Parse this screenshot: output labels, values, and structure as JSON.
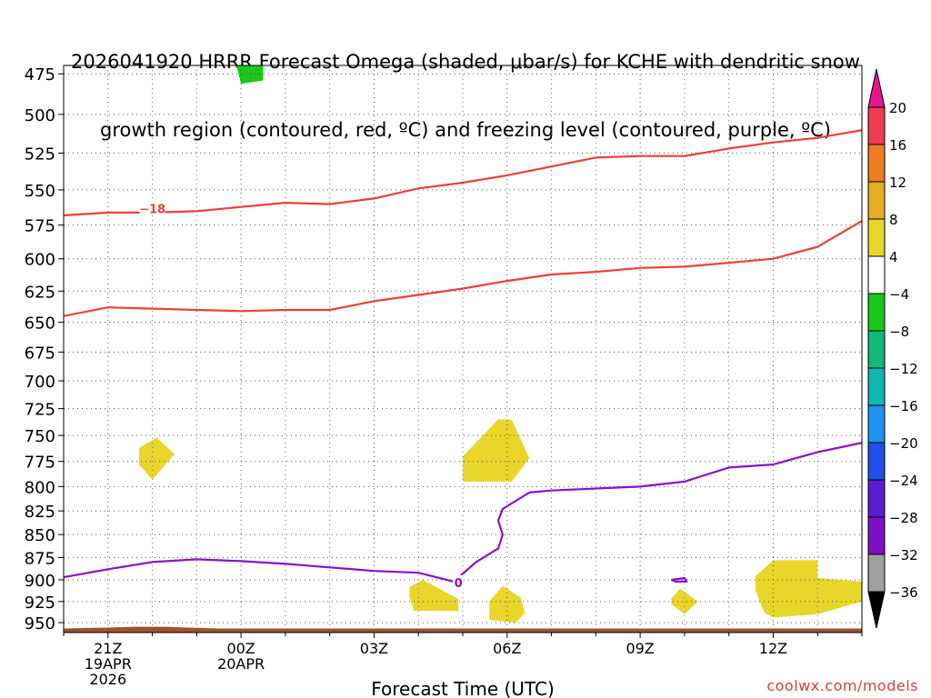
{
  "title_line1": "2026041920 HRRR Forecast Omega (shaded, μbar/s) for KCHE with dendritic snow",
  "title_line2": "growth region (contoured, red, ºC) and freezing level (contoured, purple, ºC)",
  "credit": "coolwx.com/models",
  "chart_data": {
    "type": "heatmap",
    "xlabel": "Forecast Time (UTC)",
    "x_range": [
      -1,
      17
    ],
    "y_range": [
      470,
      962
    ],
    "y_log": true,
    "y_ticks": [
      475,
      500,
      525,
      550,
      575,
      600,
      625,
      650,
      675,
      700,
      725,
      750,
      775,
      800,
      825,
      850,
      875,
      900,
      925,
      950
    ],
    "x_ticks": [
      {
        "t": 0,
        "lines": [
          "21Z",
          "19APR",
          "2026"
        ]
      },
      {
        "t": 3,
        "lines": [
          "00Z",
          "20APR"
        ]
      },
      {
        "t": 6,
        "lines": [
          "03Z"
        ]
      },
      {
        "t": 9,
        "lines": [
          "06Z"
        ]
      },
      {
        "t": 12,
        "lines": [
          "09Z"
        ]
      },
      {
        "t": 15,
        "lines": [
          "12Z"
        ]
      }
    ],
    "x_minor_ticks": [
      -1,
      1,
      2,
      4,
      5,
      7,
      8,
      10,
      11,
      13,
      14,
      16,
      17
    ],
    "colorbar": {
      "labels": [
        "20",
        "16",
        "12",
        "8",
        "4",
        "−4",
        "−8",
        "−12",
        "−16",
        "−20",
        "−24",
        "−28",
        "−32",
        "−36"
      ],
      "colors": [
        "#f03c50",
        "#ed7d22",
        "#e3ad24",
        "#e8d62a",
        "#ffffff",
        "#19c819",
        "#14b87a",
        "#10b6b4",
        "#1e90f0",
        "#1f50e8",
        "#5a1ed0",
        "#7d10c4",
        "#a0a0a0"
      ],
      "top_color": "#e6168c",
      "bottom_color": "#000000"
    },
    "dgz_contours": [
      {
        "value": -18,
        "label": "−18",
        "label_at": [
          1.0,
          563
        ],
        "points": [
          [
            -1,
            568
          ],
          [
            0,
            566
          ],
          [
            1,
            566
          ],
          [
            2,
            565
          ],
          [
            3,
            562
          ],
          [
            4,
            559
          ],
          [
            5,
            560
          ],
          [
            6,
            556
          ],
          [
            7,
            549
          ],
          [
            8,
            545
          ],
          [
            9,
            540
          ],
          [
            10,
            534
          ],
          [
            11,
            528
          ],
          [
            12,
            527
          ],
          [
            13,
            527
          ],
          [
            14,
            522
          ],
          [
            15,
            518
          ],
          [
            16,
            515
          ],
          [
            17,
            510
          ]
        ]
      },
      {
        "value": -12,
        "label": "",
        "label_at": null,
        "points": [
          [
            -1,
            645
          ],
          [
            0,
            638
          ],
          [
            1,
            639
          ],
          [
            2,
            640
          ],
          [
            3,
            641
          ],
          [
            4,
            640
          ],
          [
            5,
            640
          ],
          [
            6,
            633
          ],
          [
            7,
            628
          ],
          [
            8,
            623
          ],
          [
            9,
            617
          ],
          [
            10,
            612
          ],
          [
            11,
            610
          ],
          [
            12,
            607
          ],
          [
            13,
            606
          ],
          [
            14,
            603
          ],
          [
            15,
            600
          ],
          [
            16,
            591
          ],
          [
            17,
            572
          ]
        ]
      }
    ],
    "freezing_level": [
      {
        "value": 0,
        "label": "0",
        "label_at": [
          7.9,
          903
        ],
        "points": [
          [
            -1,
            897
          ],
          [
            0,
            888
          ],
          [
            1,
            880
          ],
          [
            2,
            877
          ],
          [
            3,
            879
          ],
          [
            4,
            882
          ],
          [
            5,
            886
          ],
          [
            6,
            890
          ],
          [
            7,
            892
          ],
          [
            7.8,
            902
          ],
          [
            8.3,
            880
          ],
          [
            8.8,
            865
          ],
          [
            8.9,
            850
          ],
          [
            8.8,
            835
          ],
          [
            8.9,
            823
          ],
          [
            9.5,
            806
          ],
          [
            10,
            804
          ],
          [
            11,
            802
          ],
          [
            12,
            800
          ],
          [
            13,
            795
          ],
          [
            14,
            781
          ],
          [
            15,
            778
          ],
          [
            16,
            766
          ],
          [
            17,
            757
          ]
        ]
      },
      {
        "value": 0,
        "label": "",
        "label_at": null,
        "points": [
          [
            12.7,
            900
          ],
          [
            13,
            898
          ],
          [
            13.05,
            902
          ],
          [
            12.8,
            902
          ],
          [
            12.7,
            900
          ]
        ]
      }
    ],
    "omega_regions": [
      {
        "level": "-8 to -4",
        "color": "#19c819",
        "points": [
          [
            2.9,
            470
          ],
          [
            3.5,
            470
          ],
          [
            3.5,
            479
          ],
          [
            3.0,
            481
          ]
        ]
      },
      {
        "level": "4 to 8",
        "color": "#e8d62a",
        "points": [
          [
            0.7,
            762
          ],
          [
            1.1,
            752
          ],
          [
            1.5,
            768
          ],
          [
            1.0,
            793
          ],
          [
            0.7,
            778
          ]
        ]
      },
      {
        "level": "4 to 8",
        "color": "#e8d62a",
        "points": [
          [
            8,
            770
          ],
          [
            8.8,
            735
          ],
          [
            9.1,
            735
          ],
          [
            9.5,
            772
          ],
          [
            9.1,
            795
          ],
          [
            8,
            795
          ]
        ]
      },
      {
        "level": "4 to 8",
        "color": "#e8d62a",
        "points": [
          [
            6.8,
            908
          ],
          [
            7.1,
            900
          ],
          [
            7.9,
            922
          ],
          [
            7.9,
            936
          ],
          [
            6.9,
            936
          ],
          [
            6.8,
            920
          ]
        ]
      },
      {
        "level": "4 to 8",
        "color": "#e8d62a",
        "points": [
          [
            8.6,
            925
          ],
          [
            8.9,
            907
          ],
          [
            9.3,
            920
          ],
          [
            9.4,
            938
          ],
          [
            9.2,
            950
          ],
          [
            8.6,
            947
          ]
        ]
      },
      {
        "level": "4 to 8",
        "color": "#e8d62a",
        "points": [
          [
            12.7,
            922
          ],
          [
            12.9,
            910
          ],
          [
            13.3,
            925
          ],
          [
            13.0,
            940
          ],
          [
            12.7,
            928
          ]
        ]
      },
      {
        "level": "4 to 8",
        "color": "#e8d62a",
        "points": [
          [
            14.6,
            896
          ],
          [
            15,
            878
          ],
          [
            16,
            878
          ],
          [
            16,
            898
          ],
          [
            17,
            902
          ],
          [
            17,
            925
          ],
          [
            16,
            940
          ],
          [
            15,
            944
          ],
          [
            14.8,
            938
          ],
          [
            14.6,
            912
          ]
        ]
      }
    ],
    "surface": {
      "color": "#a0522d",
      "points": [
        [
          -1,
          957
        ],
        [
          0,
          956
        ],
        [
          0.6,
          955
        ],
        [
          1.3,
          955
        ],
        [
          1.8,
          956
        ],
        [
          2.5,
          957
        ],
        [
          17,
          957
        ]
      ]
    }
  }
}
